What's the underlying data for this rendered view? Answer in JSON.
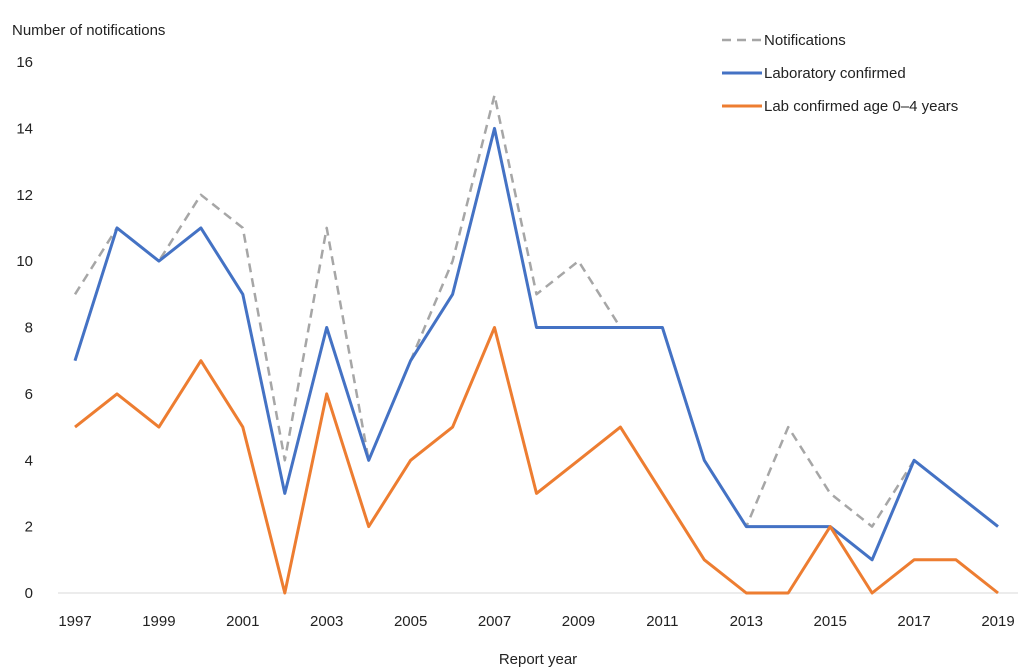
{
  "chart_data": {
    "type": "line",
    "title": "",
    "xlabel": "Report year",
    "ylabel": "Number of notifications",
    "ylim": [
      0,
      16
    ],
    "yticks": [
      0,
      2,
      4,
      6,
      8,
      10,
      12,
      14,
      16
    ],
    "xticks": [
      1997,
      1999,
      2001,
      2003,
      2005,
      2007,
      2009,
      2011,
      2013,
      2015,
      2017,
      2019
    ],
    "x": [
      1997,
      1998,
      1999,
      2000,
      2001,
      2002,
      2003,
      2004,
      2005,
      2006,
      2007,
      2008,
      2009,
      2010,
      2011,
      2012,
      2013,
      2014,
      2015,
      2016,
      2017,
      2018,
      2019
    ],
    "grid": false,
    "legend_position": "top-right",
    "series": [
      {
        "name": "Notifications",
        "color": "#a6a6a6",
        "dashed": true,
        "values": [
          9,
          11,
          10,
          12,
          11,
          4,
          11,
          4,
          7,
          10,
          15,
          9,
          10,
          8,
          8,
          4,
          2,
          5,
          3,
          2,
          4,
          3,
          2
        ]
      },
      {
        "name": "Laboratory confirmed",
        "color": "#4472c4",
        "dashed": false,
        "values": [
          7,
          11,
          10,
          11,
          9,
          3,
          8,
          4,
          7,
          9,
          14,
          8,
          8,
          8,
          8,
          4,
          2,
          2,
          2,
          1,
          4,
          3,
          2
        ]
      },
      {
        "name": "Lab confirmed age 0–4 years",
        "color": "#ed7d31",
        "dashed": false,
        "values": [
          5,
          6,
          5,
          7,
          5,
          0,
          6,
          2,
          4,
          5,
          8,
          3,
          4,
          5,
          3,
          1,
          0,
          0,
          2,
          0,
          1,
          1,
          0
        ]
      }
    ]
  }
}
